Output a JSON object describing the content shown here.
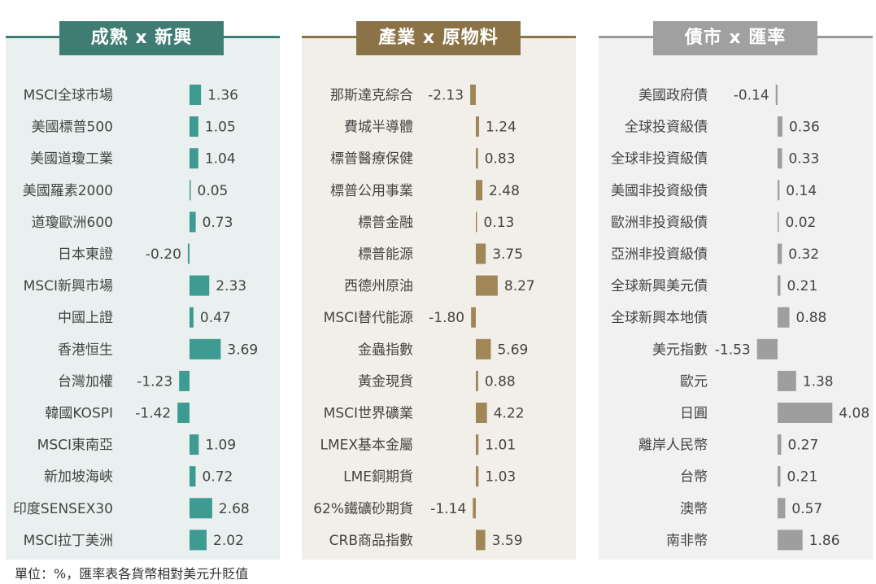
{
  "footnote": "單位：%，匯率表各貨幣相對美元升貶值",
  "chart_data": [
    {
      "type": "bar",
      "title": "成熟 x 新興",
      "color": "#3e9b91",
      "header_color": "#3f7c73",
      "panel_bg": "#eaf0ef",
      "xlim": [
        -1.5,
        4.5
      ],
      "categories": [
        "MSCI全球市場",
        "美國標普500",
        "美國道瓊工業",
        "美國羅素2000",
        "道瓊歐洲600",
        "日本東證",
        "MSCI新興市場",
        "中國上證",
        "香港恒生",
        "台灣加權",
        "韓國KOSPI",
        "MSCI東南亞",
        "新加坡海峽",
        "印度SENSEX30",
        "MSCI拉丁美洲"
      ],
      "values": [
        1.36,
        1.05,
        1.04,
        0.05,
        0.73,
        -0.2,
        2.33,
        0.47,
        3.69,
        -1.23,
        -1.42,
        1.09,
        0.72,
        2.68,
        2.02
      ],
      "labels": [
        "1.36",
        "1.05",
        "1.04",
        "0.05",
        "0.73",
        "-0.20",
        "2.33",
        "0.47",
        "3.69",
        "-1.23",
        "-1.42",
        "1.09",
        "0.72",
        "2.68",
        "2.02"
      ]
    },
    {
      "type": "bar",
      "title": "產業 x 原物料",
      "color": "#a18758",
      "header_color": "#8b7347",
      "panel_bg": "#f2efe9",
      "xlim": [
        -2.5,
        8.5
      ],
      "categories": [
        "那斯達克綜合",
        "費城半導體",
        "標普醫療保健",
        "標普公用事業",
        "標普金融",
        "標普能源",
        "西德州原油",
        "MSCI替代能源",
        "金蟲指數",
        "黃金現貨",
        "MSCI世界礦業",
        "LMEX基本金屬",
        "LME銅期貨",
        "62%鐵礦砂期貨",
        "CRB商品指數"
      ],
      "values": [
        -2.13,
        1.24,
        0.83,
        2.48,
        0.13,
        3.75,
        8.27,
        -1.8,
        5.69,
        0.88,
        4.22,
        1.01,
        1.03,
        -1.14,
        3.59
      ],
      "labels": [
        "-2.13",
        "1.24",
        "0.83",
        "2.48",
        "0.13",
        "3.75",
        "8.27",
        "-1.80",
        "5.69",
        "0.88",
        "4.22",
        "1.01",
        "1.03",
        "-1.14",
        "3.59"
      ]
    },
    {
      "type": "bar",
      "title": "債市 x 匯率",
      "color": "#9e9e9e",
      "header_color": "#a0a0a0",
      "panel_bg": "#f1f1f1",
      "xlim": [
        -1.5,
        4.5
      ],
      "categories": [
        "美國政府債",
        "全球投資級債",
        "全球非投資級債",
        "美國非投資級債",
        "歐洲非投資級債",
        "亞洲非投資級債",
        "全球新興美元債",
        "全球新興本地債",
        "美元指數",
        "歐元",
        "日圓",
        "離岸人民幣",
        "台幣",
        "澳幣",
        "南非幣"
      ],
      "values": [
        -0.14,
        0.36,
        0.33,
        0.14,
        0.02,
        0.32,
        0.21,
        0.88,
        -1.53,
        1.38,
        4.08,
        0.27,
        0.21,
        0.57,
        1.86
      ],
      "labels": [
        "-0.14",
        "0.36",
        "0.33",
        "0.14",
        "0.02",
        "0.32",
        "0.21",
        "0.88",
        "-1.53",
        "1.38",
        "4.08",
        "0.27",
        "0.21",
        "0.57",
        "1.86"
      ]
    }
  ]
}
